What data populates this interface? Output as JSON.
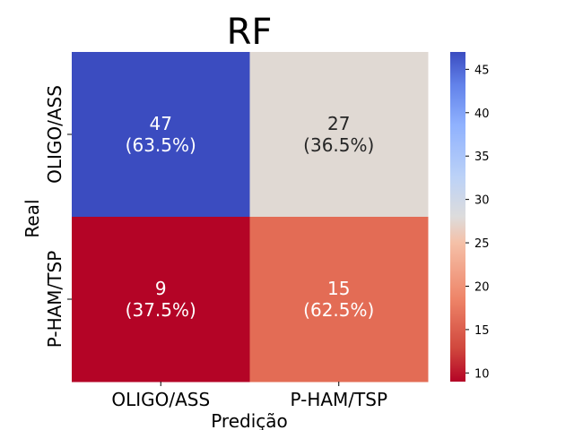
{
  "chart_data": {
    "type": "heatmap",
    "title": "RF",
    "xlabel": "Predição",
    "ylabel": "Real",
    "x_categories": [
      "OLIGO/ASS",
      "P-HAM/TSP"
    ],
    "y_categories": [
      "OLIGO/ASS",
      "P-HAM/TSP"
    ],
    "values": [
      [
        47,
        27
      ],
      [
        9,
        15
      ]
    ],
    "annotations": [
      [
        "47\n(63.5%)",
        "27\n(36.5%)"
      ],
      [
        "9\n(37.5%)",
        "15\n(62.5%)"
      ]
    ],
    "colormap": "coolwarm_r",
    "vmin": 9,
    "vmax": 47,
    "colorbar_ticks": [
      10,
      15,
      20,
      25,
      30,
      35,
      40,
      45
    ],
    "colors": {
      "cell_47": "#3b4cc0",
      "cell_27": "#e0d9d3",
      "cell_9": "#b40426",
      "cell_15": "#e36c55"
    }
  }
}
